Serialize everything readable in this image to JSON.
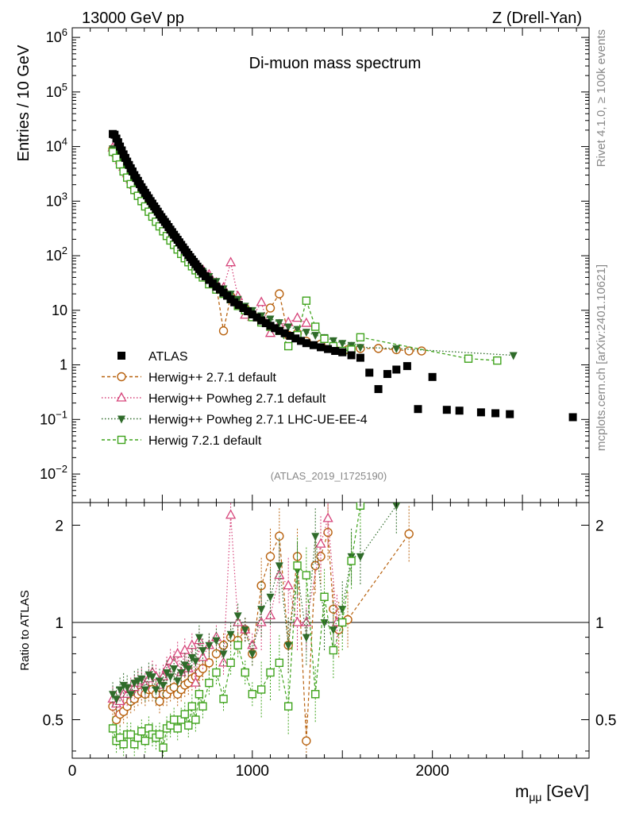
{
  "header": {
    "left": "13000 GeV pp",
    "right": "Z (Drell-Yan)"
  },
  "side_labels": {
    "rivet": "Rivet 4.1.0, ≥ 100k events",
    "mcplots": "mcplots.cern.ch [arXiv:2401.10621]"
  },
  "colors": {
    "atlas": "#000000",
    "herwigpp": "#b8620f",
    "powheg": "#d6447a",
    "powheg_ue": "#2f6b2a",
    "herwig7": "#3fa31c"
  },
  "chart_data": [
    {
      "type": "scatter",
      "title": "Di-muon mass spectrum",
      "watermark": "(ATLAS_2019_I1725190)",
      "xlabel": "m_μμ [GeV]",
      "ylabel": "Entries / 10 GeV",
      "yscale": "log",
      "xlim": [
        0,
        2870
      ],
      "ylim": [
        0.003,
        1500000
      ],
      "x_ticks": [
        "0",
        "1000",
        "2000"
      ],
      "y_ticks": [
        "10^-2",
        "10^-1",
        "1",
        "10",
        "10^2",
        "10^3",
        "10^4",
        "10^5",
        "10^6"
      ],
      "legend_position": "lower-left",
      "series": [
        {
          "name": "ATLAS",
          "marker": "square",
          "x": [
            225,
            235,
            245,
            255,
            265,
            275,
            285,
            295,
            305,
            315,
            325,
            335,
            345,
            355,
            365,
            375,
            385,
            395,
            405,
            415,
            425,
            435,
            445,
            455,
            465,
            475,
            485,
            495,
            505,
            515,
            525,
            535,
            545,
            555,
            565,
            575,
            585,
            595,
            605,
            615,
            625,
            635,
            645,
            655,
            665,
            675,
            685,
            695,
            705,
            715,
            725,
            740,
            760,
            780,
            800,
            820,
            840,
            860,
            880,
            900,
            925,
            950,
            975,
            1000,
            1025,
            1050,
            1075,
            1100,
            1125,
            1150,
            1180,
            1210,
            1240,
            1270,
            1300,
            1340,
            1380,
            1420,
            1460,
            1500,
            1550,
            1600,
            1650,
            1700,
            1750,
            1800,
            1860,
            1920,
            2000,
            2080,
            2150,
            2270,
            2350,
            2430,
            2780
          ],
          "values": [
            17000,
            16500,
            14000,
            12000,
            10000,
            8500,
            7200,
            6200,
            5300,
            4600,
            4000,
            3500,
            3000,
            2650,
            2350,
            2050,
            1800,
            1600,
            1420,
            1270,
            1130,
            1000,
            900,
            800,
            720,
            640,
            570,
            510,
            460,
            415,
            375,
            335,
            300,
            270,
            242,
            218,
            196,
            176,
            158,
            142,
            128,
            115,
            104,
            94,
            85,
            77,
            70,
            63,
            57,
            52,
            47,
            42,
            36,
            31,
            27,
            24,
            21,
            18.5,
            16,
            14,
            12.5,
            11,
            9.6,
            8.4,
            7.4,
            6.5,
            5.8,
            5.2,
            4.7,
            4.2,
            3.8,
            3.4,
            3.05,
            2.75,
            2.5,
            2.3,
            2.1,
            1.95,
            1.8,
            1.7,
            1.5,
            1.35,
            0.72,
            0.36,
            0.68,
            0.82,
            0.95,
            0.155,
            0.6,
            0.15,
            0.145,
            0.135,
            0.13,
            0.125,
            0.11
          ]
        },
        {
          "name": "Herwig++ 2.7.1 default",
          "marker": "open-circle",
          "line": "dashed",
          "x": [
            225,
            245,
            265,
            285,
            305,
            325,
            345,
            365,
            385,
            405,
            425,
            445,
            465,
            485,
            505,
            525,
            545,
            565,
            585,
            605,
            625,
            645,
            665,
            685,
            705,
            725,
            760,
            800,
            840,
            880,
            920,
            960,
            1000,
            1050,
            1100,
            1150,
            1200,
            1250,
            1300,
            1380,
            1450,
            1530,
            1600,
            1700,
            1800,
            1870,
            1940
          ],
          "values": [
            9000,
            7000,
            5200,
            3900,
            3000,
            2300,
            1800,
            1450,
            1150,
            900,
            720,
            590,
            470,
            380,
            310,
            260,
            210,
            175,
            145,
            120,
            100,
            85,
            72,
            60,
            52,
            45,
            36,
            28,
            4.2,
            18,
            13,
            11,
            8.5,
            6.5,
            11,
            20,
            3.5,
            3.8,
            2.7,
            2.4,
            2.1,
            1.9,
            2.0,
            2.0,
            1.9,
            1.8,
            1.8
          ]
        },
        {
          "name": "Herwig++ Powheg 2.7.1 default",
          "marker": "open-triangle-up",
          "line": "dotted",
          "x": [
            225,
            245,
            265,
            285,
            305,
            325,
            345,
            365,
            385,
            405,
            425,
            445,
            465,
            485,
            505,
            525,
            545,
            565,
            585,
            605,
            625,
            645,
            665,
            685,
            705,
            725,
            760,
            800,
            840,
            880,
            920,
            960,
            1000,
            1050,
            1100,
            1150,
            1200,
            1250,
            1300
          ],
          "values": [
            9500,
            7600,
            5600,
            4200,
            3200,
            2500,
            1950,
            1550,
            1250,
            980,
            800,
            650,
            520,
            430,
            350,
            290,
            240,
            200,
            165,
            138,
            118,
            100,
            85,
            72,
            62,
            55,
            45,
            32,
            26,
            75,
            18,
            8.2,
            7.5,
            14,
            3.8,
            5.5,
            6.0,
            7.2,
            5.8
          ]
        },
        {
          "name": "Herwig++ Powheg 2.7.1 LHC-UE-EE-4",
          "marker": "filled-triangle-down",
          "line": "dotted",
          "x": [
            225,
            245,
            265,
            285,
            305,
            325,
            345,
            365,
            385,
            405,
            425,
            445,
            465,
            485,
            505,
            525,
            545,
            565,
            585,
            605,
            625,
            645,
            665,
            685,
            705,
            725,
            760,
            800,
            840,
            880,
            920,
            960,
            1000,
            1050,
            1100,
            1150,
            1200,
            1250,
            1300,
            1350,
            1400,
            1450,
            1500,
            1550,
            1600,
            1800,
            2450
          ],
          "values": [
            9200,
            7400,
            5500,
            4100,
            3100,
            2450,
            1900,
            1500,
            1200,
            950,
            780,
            640,
            510,
            420,
            340,
            280,
            235,
            195,
            160,
            135,
            115,
            97,
            82,
            70,
            60,
            52,
            42,
            34,
            25,
            20,
            16,
            12,
            10,
            8,
            7,
            6,
            5,
            4.5,
            4,
            3.5,
            3.2,
            2.8,
            2.5,
            2.3,
            2.1,
            2.0,
            1.5
          ]
        },
        {
          "name": "Herwig 7.2.1 default",
          "marker": "open-square",
          "line": "dashed",
          "x": [
            225,
            245,
            265,
            285,
            305,
            325,
            345,
            365,
            385,
            405,
            425,
            445,
            465,
            485,
            505,
            525,
            545,
            565,
            585,
            605,
            625,
            645,
            665,
            685,
            705,
            725,
            760,
            800,
            840,
            880,
            920,
            960,
            1000,
            1050,
            1100,
            1150,
            1200,
            1250,
            1300,
            1350,
            1400,
            1450,
            1500,
            1550,
            1600,
            2200,
            2360
          ],
          "values": [
            8000,
            6200,
            4700,
            3500,
            2700,
            2050,
            1600,
            1250,
            1000,
            800,
            640,
            520,
            420,
            345,
            280,
            230,
            190,
            158,
            130,
            108,
            90,
            76,
            64,
            54,
            46,
            40,
            30,
            24,
            20,
            16,
            12,
            10,
            7.5,
            6,
            5,
            4.2,
            2.2,
            3.5,
            15,
            5,
            3,
            2.2,
            1.8,
            1.9,
            3.2,
            1.3,
            1.2
          ]
        }
      ]
    },
    {
      "type": "scatter",
      "ylabel": "Ratio to ATLAS",
      "yscale": "log",
      "xlim": [
        0,
        2870
      ],
      "ylim": [
        0.38,
        2.35
      ],
      "x_ticks": [
        "0",
        "1000",
        "2000"
      ],
      "y_ticks": [
        "0.5",
        "1",
        "2"
      ],
      "reference_line": 1,
      "series": [
        {
          "name": "Herwig++ 2.7.1 default",
          "x": [
            225,
            245,
            265,
            285,
            305,
            325,
            345,
            365,
            385,
            405,
            425,
            445,
            465,
            485,
            505,
            525,
            545,
            565,
            585,
            605,
            625,
            645,
            665,
            685,
            705,
            725,
            760,
            800,
            840,
            880,
            920,
            960,
            1000,
            1050,
            1100,
            1150,
            1200,
            1250,
            1300,
            1350,
            1380,
            1420,
            1450,
            1480,
            1530,
            1870
          ],
          "values": [
            0.55,
            0.5,
            0.52,
            0.53,
            0.55,
            0.57,
            0.58,
            0.6,
            0.61,
            0.6,
            0.62,
            0.62,
            0.6,
            0.57,
            0.6,
            0.6,
            0.62,
            0.63,
            0.6,
            0.62,
            0.64,
            0.65,
            0.67,
            0.68,
            0.7,
            0.72,
            0.75,
            0.8,
            0.85,
            0.9,
            0.88,
            0.95,
            0.8,
            1.3,
            1.6,
            1.85,
            0.85,
            1.6,
            0.43,
            1.5,
            1.6,
            1.9,
            1.1,
            0.95,
            1.02,
            1.88
          ]
        },
        {
          "name": "Herwig++ Powheg 2.7.1 default",
          "x": [
            225,
            245,
            265,
            285,
            305,
            325,
            345,
            365,
            385,
            405,
            425,
            445,
            465,
            485,
            505,
            525,
            545,
            565,
            585,
            605,
            625,
            645,
            665,
            685,
            705,
            725,
            760,
            800,
            840,
            880,
            920,
            960,
            1000,
            1050,
            1100,
            1150,
            1200,
            1250,
            1300,
            1380,
            1420,
            1470
          ],
          "values": [
            0.58,
            0.56,
            0.57,
            0.6,
            0.6,
            0.62,
            0.63,
            0.65,
            0.66,
            0.64,
            0.67,
            0.7,
            0.68,
            0.64,
            0.68,
            0.72,
            0.76,
            0.75,
            0.8,
            0.7,
            0.82,
            0.72,
            0.85,
            0.65,
            0.88,
            0.78,
            0.85,
            0.9,
            0.75,
            2.15,
            1.0,
            0.95,
            0.85,
            1.0,
            1.05,
            1.4,
            1.3,
            1.0,
            1.0,
            1.75,
            2.1,
            1.0
          ]
        },
        {
          "name": "Herwig++ Powheg 2.7.1 LHC-UE-EE-4",
          "x": [
            225,
            245,
            265,
            285,
            305,
            325,
            345,
            365,
            385,
            405,
            425,
            445,
            465,
            485,
            505,
            525,
            545,
            565,
            585,
            605,
            625,
            645,
            665,
            685,
            705,
            725,
            760,
            800,
            840,
            880,
            920,
            960,
            1000,
            1050,
            1100,
            1150,
            1200,
            1250,
            1300,
            1350,
            1400,
            1450,
            1500,
            1550,
            1600,
            1800
          ],
          "values": [
            0.6,
            0.58,
            0.62,
            0.64,
            0.63,
            0.6,
            0.65,
            0.66,
            0.67,
            0.62,
            0.69,
            0.68,
            0.62,
            0.66,
            0.64,
            0.7,
            0.68,
            0.72,
            0.66,
            0.7,
            0.74,
            0.72,
            0.78,
            0.76,
            0.9,
            0.82,
            0.85,
            0.88,
            0.8,
            0.92,
            1.05,
            0.95,
            0.8,
            1.1,
            1.2,
            1.5,
            0.85,
            1.45,
            0.9,
            1.85,
            1.0,
            0.95,
            1.1,
            1.6,
            1.6,
            2.3
          ]
        },
        {
          "name": "Herwig 7.2.1 default",
          "x": [
            225,
            245,
            265,
            285,
            305,
            325,
            345,
            365,
            385,
            405,
            425,
            445,
            465,
            485,
            505,
            525,
            545,
            565,
            585,
            605,
            625,
            645,
            665,
            685,
            705,
            725,
            760,
            800,
            840,
            880,
            920,
            960,
            1000,
            1050,
            1100,
            1150,
            1200,
            1250,
            1300,
            1350,
            1400,
            1450,
            1500,
            1550,
            1600
          ],
          "values": [
            0.47,
            0.43,
            0.44,
            0.42,
            0.45,
            0.45,
            0.42,
            0.44,
            0.46,
            0.43,
            0.47,
            0.45,
            0.44,
            0.45,
            0.41,
            0.47,
            0.48,
            0.5,
            0.47,
            0.5,
            0.52,
            0.48,
            0.55,
            0.5,
            0.6,
            0.55,
            0.65,
            0.7,
            0.58,
            0.75,
            0.85,
            0.7,
            0.6,
            0.62,
            0.7,
            0.75,
            0.55,
            1.5,
            1.4,
            0.6,
            1.2,
            0.82,
            1.0,
            1.55,
            2.3
          ]
        }
      ]
    }
  ]
}
